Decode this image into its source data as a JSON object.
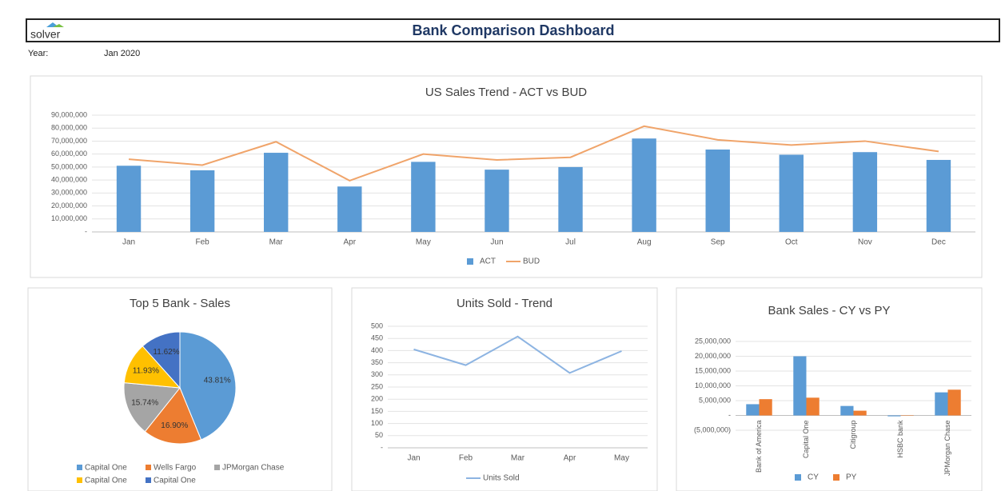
{
  "header": {
    "logo": "solver",
    "title": "Bank Comparison Dashboard",
    "year_label": "Year:",
    "year": "Jan 2020"
  },
  "chart_data": [
    {
      "type": "bar",
      "title": "US Sales Trend - ACT vs BUD",
      "categories": [
        "Jan",
        "Feb",
        "Mar",
        "Apr",
        "May",
        "Jun",
        "Jul",
        "Aug",
        "Sep",
        "Oct",
        "Nov",
        "Dec"
      ],
      "series": [
        {
          "name": "ACT",
          "type": "bar",
          "color": "#5b9bd5",
          "values": [
            51000000,
            47500000,
            61000000,
            35000000,
            54000000,
            48000000,
            50000000,
            72000000,
            63500000,
            59500000,
            61500000,
            55500000
          ]
        },
        {
          "name": "BUD",
          "type": "line",
          "color": "#f0a46a",
          "values": [
            56000000,
            51500000,
            69500000,
            39500000,
            60000000,
            55500000,
            57500000,
            81500000,
            71000000,
            67000000,
            70000000,
            62000000
          ]
        }
      ],
      "ylim": [
        0,
        90000000
      ],
      "yticks": [
        {
          "value": 0,
          "label": "-"
        },
        {
          "value": 10000000,
          "label": "10,000,000"
        },
        {
          "value": 20000000,
          "label": "20,000,000"
        },
        {
          "value": 30000000,
          "label": "30,000,000"
        },
        {
          "value": 40000000,
          "label": "40,000,000"
        },
        {
          "value": 50000000,
          "label": "50,000,000"
        },
        {
          "value": 60000000,
          "label": "60,000,000"
        },
        {
          "value": 70000000,
          "label": "70,000,000"
        },
        {
          "value": 80000000,
          "label": "80,000,000"
        },
        {
          "value": 90000000,
          "label": "90,000,000"
        }
      ],
      "grid": true,
      "legend": "bottom"
    },
    {
      "type": "pie",
      "title": "Top 5 Bank - Sales",
      "categories": [
        "Capital One",
        "Wells Fargo",
        "JPMorgan Chase",
        "Capital One",
        "Capital One"
      ],
      "values": [
        43.81,
        16.9,
        15.74,
        11.93,
        11.62
      ],
      "value_labels": [
        "43.81%",
        "16.90%",
        "15.74%",
        "11.93%",
        "11.62%"
      ],
      "colors": [
        "#5b9bd5",
        "#ed7d31",
        "#a5a5a5",
        "#ffc000",
        "#4472c4"
      ],
      "legend": "bottom"
    },
    {
      "type": "line",
      "title": "Units Sold - Trend",
      "categories": [
        "Jan",
        "Feb",
        "Mar",
        "Apr",
        "May"
      ],
      "series": [
        {
          "name": "Units Sold",
          "type": "line",
          "color": "#8db4e2",
          "values": [
            405,
            340,
            458,
            308,
            398
          ]
        }
      ],
      "ylim": [
        0,
        500
      ],
      "yticks": [
        {
          "value": 0,
          "label": "-"
        },
        50,
        100,
        150,
        200,
        250,
        300,
        350,
        400,
        450,
        500
      ],
      "grid": true,
      "legend": "bottom"
    },
    {
      "type": "bar",
      "title": "Bank Sales - CY vs PY",
      "categories": [
        "Bank of America",
        "Capital One",
        "Citigroup",
        "HSBC bank",
        "JPMorgan Chase"
      ],
      "series": [
        {
          "name": "CY",
          "type": "bar",
          "color": "#5b9bd5",
          "values": [
            3800000,
            20000000,
            3200000,
            -300000,
            7800000
          ]
        },
        {
          "name": "PY",
          "type": "bar",
          "color": "#ed7d31",
          "values": [
            5500000,
            6000000,
            1600000,
            0,
            8700000
          ]
        }
      ],
      "ylim": [
        -5000000,
        25000000
      ],
      "yticks": [
        {
          "value": -5000000,
          "label": "(5,000,000)"
        },
        {
          "value": 0,
          "label": "-"
        },
        {
          "value": 5000000,
          "label": "5,000,000"
        },
        {
          "value": 10000000,
          "label": "10,000,000"
        },
        {
          "value": 15000000,
          "label": "15,000,000"
        },
        {
          "value": 20000000,
          "label": "20,000,000"
        },
        {
          "value": 25000000,
          "label": "25,000,000"
        }
      ],
      "grid": true,
      "legend": "bottom"
    }
  ]
}
